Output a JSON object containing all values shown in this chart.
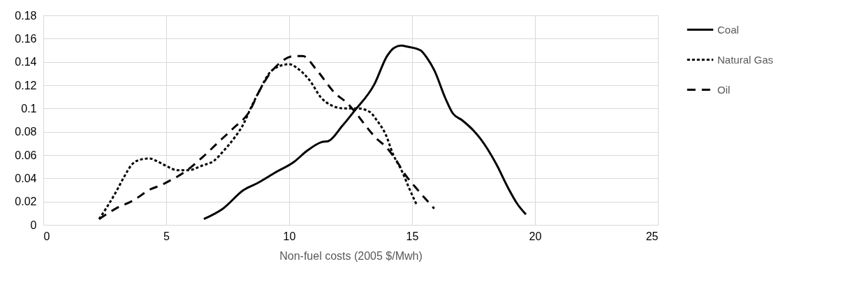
{
  "chart_data": {
    "type": "line",
    "xlabel": "Non-fuel costs (2005 $/Mwh)",
    "xlim": [
      0,
      25
    ],
    "xticks": [
      0,
      5,
      10,
      15,
      20,
      25
    ],
    "ylim": [
      0,
      0.18
    ],
    "yticks": [
      0,
      0.02,
      0.04,
      0.06,
      0.08,
      0.1,
      0.12,
      0.14,
      0.16,
      0.18
    ],
    "grid": true,
    "legend": "right",
    "series": [
      {
        "name": "Coal",
        "color": "#000000",
        "line_style": "solid",
        "x": [
          6.53,
          7.31,
          8.15,
          8.72,
          9.44,
          10.19,
          10.75,
          11.31,
          11.6,
          12.16,
          12.62,
          13.47,
          13.98,
          14.26,
          14.55,
          14.83,
          15.34,
          15.62,
          15.9,
          16.37,
          16.65,
          17.03,
          17.5,
          17.78,
          18.43,
          18.9,
          19.28,
          19.63
        ],
        "values": [
          0.005,
          0.014,
          0.03,
          0.036,
          0.045,
          0.054,
          0.064,
          0.071,
          0.072,
          0.085,
          0.097,
          0.121,
          0.145,
          0.152,
          0.154,
          0.153,
          0.15,
          0.143,
          0.133,
          0.108,
          0.096,
          0.09,
          0.081,
          0.074,
          0.052,
          0.032,
          0.018,
          0.009
        ]
      },
      {
        "name": "Natural Gas",
        "color": "#000000",
        "line_style": "dotted",
        "x": [
          2.27,
          2.58,
          2.95,
          3.28,
          3.61,
          3.94,
          4.31,
          4.69,
          5.06,
          5.44,
          5.9,
          6.47,
          6.94,
          7.31,
          7.78,
          8.15,
          8.43,
          8.81,
          9.18,
          9.56,
          10.0,
          10.37,
          10.84,
          11.31,
          11.69,
          12.25,
          12.81,
          13.28,
          13.56,
          13.94,
          14.22,
          14.59,
          14.87,
          15.17
        ],
        "values": [
          0.005,
          0.015,
          0.028,
          0.041,
          0.052,
          0.056,
          0.057,
          0.054,
          0.05,
          0.047,
          0.047,
          0.051,
          0.055,
          0.063,
          0.075,
          0.087,
          0.1,
          0.116,
          0.13,
          0.136,
          0.138,
          0.134,
          0.124,
          0.109,
          0.103,
          0.1,
          0.1,
          0.097,
          0.09,
          0.077,
          0.061,
          0.046,
          0.032,
          0.018
        ]
      },
      {
        "name": "Oil",
        "color": "#000000",
        "line_style": "dashed",
        "x": [
          2.27,
          2.95,
          3.66,
          4.4,
          4.78,
          5.15,
          5.72,
          6.47,
          7.12,
          7.78,
          8.34,
          8.81,
          9.18,
          9.56,
          10.19,
          10.56,
          11.12,
          11.87,
          12.34,
          12.72,
          13.19,
          13.56,
          13.94,
          14.4,
          14.69,
          15.11,
          15.9
        ],
        "values": [
          0.005,
          0.014,
          0.021,
          0.031,
          0.034,
          0.038,
          0.045,
          0.058,
          0.071,
          0.084,
          0.096,
          0.116,
          0.129,
          0.138,
          0.145,
          0.145,
          0.133,
          0.113,
          0.105,
          0.096,
          0.083,
          0.074,
          0.067,
          0.054,
          0.044,
          0.033,
          0.014
        ]
      }
    ]
  }
}
